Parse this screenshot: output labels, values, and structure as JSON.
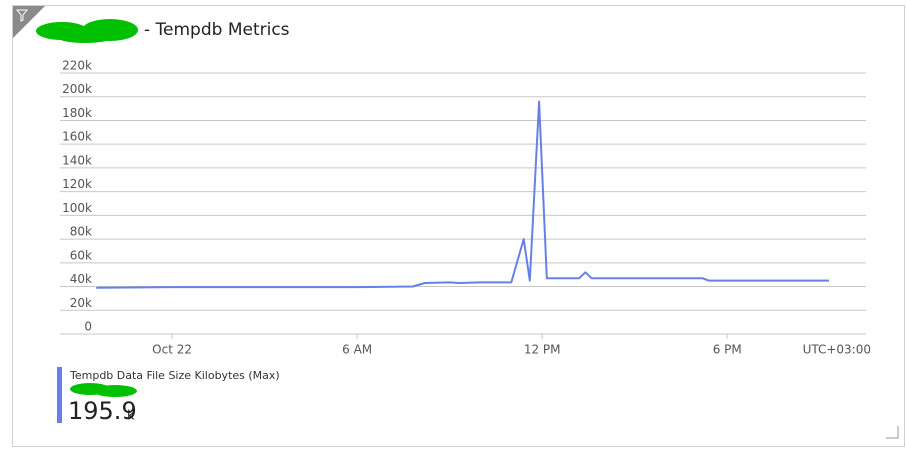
{
  "chart_data": {
    "type": "line",
    "title": "- Tempdb Metrics",
    "x": [
      -2.46,
      0,
      3,
      6,
      7.8,
      8.2,
      9,
      9.3,
      10,
      11,
      11.4,
      11.6,
      11.9,
      12.15,
      13.2,
      13.4,
      13.6,
      15,
      17.2,
      17.4,
      19,
      21.3
    ],
    "series": [
      {
        "name": "Tempdb Data File Size Kilobytes (Max)",
        "color": "#6680e8",
        "values": [
          39000,
          39500,
          39500,
          39500,
          40000,
          43000,
          43500,
          43000,
          43500,
          43500,
          80000,
          45000,
          196000,
          47000,
          47000,
          52000,
          47000,
          47000,
          47000,
          45000,
          45000,
          45000
        ]
      }
    ],
    "xlim": [
      -2.5,
      22.5
    ],
    "xticks": [
      {
        "value": 0,
        "label": "Oct 22"
      },
      {
        "value": 6,
        "label": "6 AM"
      },
      {
        "value": 12,
        "label": "12 PM"
      },
      {
        "value": 18,
        "label": "6 PM"
      }
    ],
    "timezone": "UTC+03:00",
    "ylim": [
      0,
      220000
    ],
    "yticks": [
      {
        "value": 0,
        "label": "0"
      },
      {
        "value": 20000,
        "label": "20k"
      },
      {
        "value": 40000,
        "label": "40k"
      },
      {
        "value": 60000,
        "label": "60k"
      },
      {
        "value": 80000,
        "label": "80k"
      },
      {
        "value": 100000,
        "label": "100k"
      },
      {
        "value": 120000,
        "label": "120k"
      },
      {
        "value": 140000,
        "label": "140k"
      },
      {
        "value": 160000,
        "label": "160k"
      },
      {
        "value": 180000,
        "label": "180k"
      },
      {
        "value": 200000,
        "label": "200k"
      },
      {
        "value": 220000,
        "label": "220k"
      }
    ],
    "grid": true,
    "summary": {
      "value": 195.9,
      "unit": "k"
    }
  }
}
